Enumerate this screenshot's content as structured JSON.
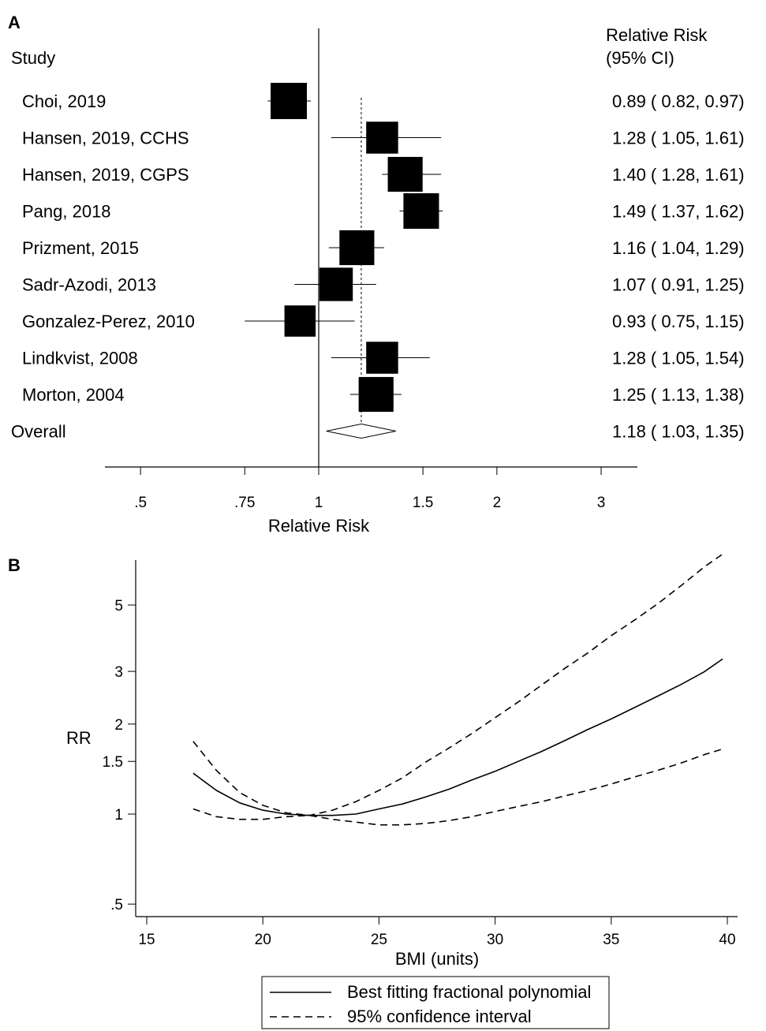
{
  "chart_data": [
    {
      "panel_label": "A",
      "type": "forest",
      "header_study": "Study",
      "header_rr_line1": "Relative Risk",
      "header_rr_line2": "(95% CI)",
      "xlabel": "Relative Risk",
      "x_scale": "log",
      "xlim": [
        0.42,
        3.3
      ],
      "xticks": [
        0.5,
        0.75,
        1,
        1.5,
        2,
        3
      ],
      "xtick_labels": [
        ".5",
        ".75",
        "1",
        "1.5",
        "2",
        "3"
      ],
      "null_line": 1,
      "overall_line": 1.18,
      "studies": [
        {
          "label": "Choi, 2019",
          "rr": 0.89,
          "lo": 0.82,
          "hi": 0.97,
          "text": "0.89 ( 0.82, 0.97)",
          "weight": 1.0
        },
        {
          "label": "Hansen, 2019, CCHS",
          "rr": 1.28,
          "lo": 1.05,
          "hi": 1.61,
          "text": "1.28 ( 1.05, 1.61)",
          "weight": 0.88
        },
        {
          "label": "Hansen, 2019, CGPS",
          "rr": 1.4,
          "lo": 1.28,
          "hi": 1.61,
          "text": "1.40 ( 1.28, 1.61)",
          "weight": 0.96
        },
        {
          "label": "Pang, 2018",
          "rr": 1.49,
          "lo": 1.37,
          "hi": 1.62,
          "text": "1.49 ( 1.37, 1.62)",
          "weight": 0.98
        },
        {
          "label": "Prizment, 2015",
          "rr": 1.16,
          "lo": 1.04,
          "hi": 1.29,
          "text": "1.16 ( 1.04, 1.29)",
          "weight": 0.96
        },
        {
          "label": "Sadr-Azodi, 2013",
          "rr": 1.07,
          "lo": 0.91,
          "hi": 1.25,
          "text": "1.07 ( 0.91, 1.25)",
          "weight": 0.92
        },
        {
          "label": "Gonzalez-Perez, 2010",
          "rr": 0.93,
          "lo": 0.75,
          "hi": 1.15,
          "text": "0.93 ( 0.75, 1.15)",
          "weight": 0.86
        },
        {
          "label": "Lindkvist, 2008",
          "rr": 1.28,
          "lo": 1.05,
          "hi": 1.54,
          "text": "1.28 ( 1.05, 1.54)",
          "weight": 0.88
        },
        {
          "label": "Morton, 2004",
          "rr": 1.25,
          "lo": 1.13,
          "hi": 1.38,
          "text": "1.25 ( 1.13, 1.38)",
          "weight": 0.96
        }
      ],
      "overall": {
        "label": "Overall",
        "rr": 1.18,
        "lo": 1.03,
        "hi": 1.35,
        "text": "1.18 ( 1.03, 1.35)"
      }
    },
    {
      "panel_label": "B",
      "type": "line",
      "xlabel": "BMI (units)",
      "ylabel": "RR",
      "y_scale": "log",
      "xlim": [
        15,
        40
      ],
      "ylim": [
        0.45,
        7.5
      ],
      "xticks": [
        15,
        20,
        25,
        30,
        35,
        40
      ],
      "xtick_labels": [
        "15",
        "20",
        "25",
        "30",
        "35",
        "40"
      ],
      "yticks": [
        0.5,
        1,
        1.5,
        2,
        3,
        5
      ],
      "ytick_labels": [
        ".5",
        "1",
        "1.5",
        "2",
        "3",
        "5"
      ],
      "x": [
        17,
        18,
        19,
        20,
        21,
        22,
        23,
        24,
        25,
        26,
        27,
        28,
        29,
        30,
        31,
        32,
        33,
        34,
        35,
        36,
        37,
        38,
        39,
        39.8
      ],
      "series": [
        {
          "name": "Best fitting fractional polynomial",
          "style": "solid",
          "values": [
            1.37,
            1.2,
            1.09,
            1.03,
            1.0,
            0.99,
            0.99,
            1.0,
            1.04,
            1.08,
            1.14,
            1.21,
            1.3,
            1.39,
            1.5,
            1.62,
            1.76,
            1.92,
            2.08,
            2.27,
            2.48,
            2.71,
            2.99,
            3.3
          ]
        },
        {
          "name": "95% confidence interval",
          "style": "dashed",
          "values": [
            1.75,
            1.4,
            1.18,
            1.07,
            1.01,
            0.99,
            1.03,
            1.1,
            1.2,
            1.32,
            1.49,
            1.66,
            1.86,
            2.1,
            2.37,
            2.7,
            3.07,
            3.46,
            3.95,
            4.45,
            5.05,
            5.8,
            6.7,
            7.4
          ]
        },
        {
          "name": "95% confidence interval (lower)",
          "style": "dashed",
          "values": [
            1.04,
            0.98,
            0.96,
            0.96,
            0.98,
            0.99,
            0.96,
            0.94,
            0.92,
            0.92,
            0.93,
            0.95,
            0.98,
            1.02,
            1.06,
            1.1,
            1.15,
            1.2,
            1.26,
            1.33,
            1.4,
            1.48,
            1.58,
            1.65
          ]
        }
      ],
      "legend": {
        "placement": "bottom",
        "entries": [
          {
            "label": "Best fitting fractional polynomial",
            "style": "solid"
          },
          {
            "label": "95% confidence interval",
            "style": "dashed"
          }
        ]
      }
    }
  ]
}
